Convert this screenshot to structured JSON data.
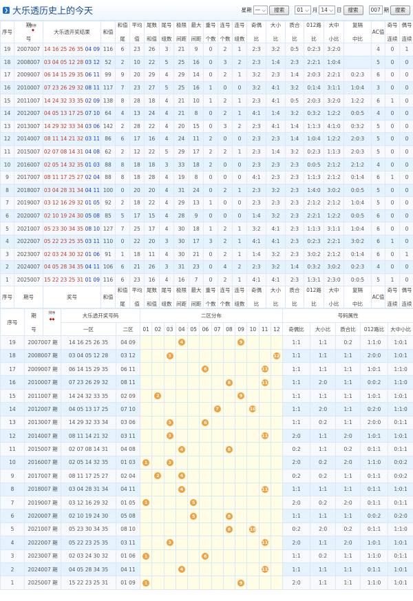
{
  "header": {
    "title": "大乐透历史上的今天",
    "week_label": "星期",
    "week_value": "一",
    "search": "搜索",
    "month_value": "01",
    "month_label": "月",
    "day_value": "14",
    "day_label": "日",
    "issue_value": "007",
    "issue_label": "期"
  },
  "table1": {
    "headers": [
      [
        "序号"
      ],
      [
        "期",
        "号"
      ],
      [
        "大乐透开奖结果"
      ],
      [
        "和值"
      ],
      [
        "和值",
        "尾"
      ],
      [
        "平均",
        "值"
      ],
      [
        "尾数",
        "和值"
      ],
      [
        "尾号",
        "组数"
      ],
      [
        "极限",
        "间距"
      ],
      [
        "最大",
        "间距"
      ],
      [
        "重号",
        "个数"
      ],
      [
        "连号",
        "个数"
      ],
      [
        "连号",
        "组数"
      ],
      [
        "奇偶",
        "比"
      ],
      [
        "大小",
        "比"
      ],
      [
        "质合",
        "比"
      ],
      [
        "012路",
        "比"
      ],
      [
        "大中",
        "小比"
      ],
      [
        "复隔",
        "中比"
      ],
      [
        "AC值"
      ],
      [
        "奇号",
        "连续"
      ],
      [
        "偶号",
        "连续"
      ]
    ],
    "sort_label": "排序",
    "footer_headers": [
      [
        "序号"
      ],
      [
        "期号"
      ],
      [
        "奖号"
      ],
      [
        "和值"
      ],
      [
        "和值",
        "尾"
      ],
      [
        "平均",
        "值"
      ],
      [
        "尾数",
        "和值"
      ],
      [
        "尾号",
        "组数"
      ],
      [
        "极限",
        "间距"
      ],
      [
        "最大",
        "间距"
      ],
      [
        "重号",
        "个数"
      ],
      [
        "连号",
        "个数"
      ],
      [
        "连号",
        "组数"
      ],
      [
        "奇偶",
        "比"
      ],
      [
        "大小",
        "比"
      ],
      [
        "质合",
        "比"
      ],
      [
        "012路",
        "比"
      ],
      [
        "大中",
        "小比"
      ],
      [
        "复隔",
        "中比"
      ],
      [
        "AC值"
      ],
      [
        "奇号",
        "连续"
      ],
      [
        "偶号",
        "连续"
      ]
    ],
    "rows": [
      [
        "19",
        "2007007",
        "14 16 25 26 35",
        "04 09",
        "116",
        "6",
        "23",
        "26",
        "3",
        "21",
        "9",
        "0",
        "2",
        "1",
        "2:3",
        "3:2",
        "0:5",
        "0:2:3",
        "3:2:0",
        "",
        "4",
        "0",
        "1"
      ],
      [
        "18",
        "2008007",
        "03 04 05 12 28",
        "03 12",
        "52",
        "2",
        "10",
        "22",
        "5",
        "25",
        "16",
        "0",
        "3",
        "2",
        "2:3",
        "1:4",
        "2:3",
        "2:2:1",
        "1:0:4",
        "",
        "5",
        "0",
        "0"
      ],
      [
        "17",
        "2009007",
        "06 14 15 29 35",
        "06 11",
        "99",
        "9",
        "20",
        "29",
        "4",
        "29",
        "14",
        "0",
        "2",
        "1",
        "3:2",
        "2:3",
        "1:4",
        "2:0:3",
        "2:2:1",
        "0:2:3",
        "6",
        "0",
        "0"
      ],
      [
        "16",
        "2010007",
        "07 23 26 29 32",
        "08 11",
        "117",
        "7",
        "23",
        "27",
        "5",
        "25",
        "16",
        "1",
        "0",
        "0",
        "3:2",
        "4:1",
        "3:2",
        "0:1:4",
        "3:1:1",
        "1:0:4",
        "3",
        "0",
        "0"
      ],
      [
        "15",
        "2011007",
        "14 24 32 33 35",
        "02 09",
        "138",
        "8",
        "28",
        "18",
        "4",
        "21",
        "10",
        "1",
        "2",
        "1",
        "2:3",
        "4:1",
        "0:5",
        "2:0:3",
        "3:2:0",
        "1:2:2",
        "6",
        "1",
        "0"
      ],
      [
        "14",
        "2012007",
        "04 05 13 17 25",
        "07 10",
        "64",
        "4",
        "13",
        "24",
        "4",
        "21",
        "8",
        "0",
        "2",
        "1",
        "4:1",
        "1:4",
        "3:2",
        "0:3:2",
        "1:2:2",
        "0:0:5",
        "4",
        "0",
        "0"
      ],
      [
        "13",
        "2013007",
        "14 29 32 33 34",
        "03 06",
        "142",
        "2",
        "28",
        "22",
        "4",
        "20",
        "15",
        "0",
        "3",
        "2",
        "2:3",
        "4:1",
        "1:4",
        "1:1:3",
        "4:1:0",
        "0:3:2",
        "5",
        "0",
        "0"
      ],
      [
        "12",
        "2014007",
        "08 11 14 21 32",
        "03 11",
        "86",
        "6",
        "17",
        "16",
        "4",
        "24",
        "11",
        "2",
        "0",
        "0",
        "2:3",
        "2:3",
        "1:4",
        "1:0:4",
        "1:2:2",
        "2:0:3",
        "5",
        "0",
        "0"
      ],
      [
        "11",
        "2015007",
        "02 07 08 14 31",
        "04 08",
        "62",
        "2",
        "12",
        "22",
        "5",
        "29",
        "17",
        "2",
        "2",
        "1",
        "2:3",
        "1:4",
        "3:2",
        "0:2:3",
        "1:1:3",
        "2:0:3",
        "5",
        "0",
        "0"
      ],
      [
        "10",
        "2016007",
        "02 05 14 32 35",
        "01 03",
        "88",
        "8",
        "18",
        "18",
        "3",
        "33",
        "18",
        "2",
        "0",
        "0",
        "2:3",
        "2:3",
        "2:3",
        "0:0:5",
        "2:1:2",
        "2:1:2",
        "4",
        "0",
        "0"
      ],
      [
        "9",
        "2017007",
        "08 11 17 25 27",
        "02 04",
        "88",
        "8",
        "18",
        "28",
        "4",
        "19",
        "8",
        "0",
        "0",
        "0",
        "4:1",
        "2:3",
        "2:3",
        "1:1:3",
        "2:1:2",
        "0:1:4",
        "6",
        "1",
        "0"
      ],
      [
        "8",
        "2018007",
        "03 04 28 31 34",
        "04 11",
        "100",
        "0",
        "20",
        "20",
        "4",
        "31",
        "24",
        "0",
        "2",
        "1",
        "2:3",
        "3:2",
        "2:3",
        "1:4:0",
        "3:0:2",
        "0:0:5",
        "5",
        "0",
        "0"
      ],
      [
        "7",
        "2019007",
        "03 12 16 29 32",
        "01 05",
        "92",
        "2",
        "18",
        "22",
        "4",
        "29",
        "13",
        "1",
        "0",
        "0",
        "2:3",
        "2:3",
        "2:3",
        "2:1:2",
        "2:1:2",
        "1:0:4",
        "5",
        "0",
        "0"
      ],
      [
        "6",
        "2020007",
        "02 10 19 24 30",
        "05 08",
        "85",
        "5",
        "17",
        "15",
        "4",
        "28",
        "9",
        "0",
        "0",
        "0",
        "1:4",
        "3:2",
        "2:3",
        "2:2:1",
        "1:2:2",
        "0:0:5",
        "6",
        "0",
        "0"
      ],
      [
        "5",
        "2021007",
        "05 23 30 34 35",
        "08 10",
        "127",
        "7",
        "25",
        "17",
        "4",
        "30",
        "18",
        "1",
        "2",
        "1",
        "3:2",
        "4:1",
        "2:3",
        "1:1:3",
        "3:1:1",
        "1:0:4",
        "6",
        "0",
        "0"
      ],
      [
        "4",
        "2022007",
        "05 22 23 25 35",
        "03 11",
        "110",
        "0",
        "22",
        "20",
        "3",
        "30",
        "17",
        "3",
        "2",
        "1",
        "4:1",
        "4:1",
        "2:3",
        "0:2:3",
        "2:2:1",
        "3:0:2",
        "6",
        "1",
        "0"
      ],
      [
        "3",
        "2023007",
        "02 03 24 30 32",
        "01 06",
        "91",
        "1",
        "18",
        "11",
        "4",
        "30",
        "21",
        "0",
        "2",
        "1",
        "1:4",
        "3:2",
        "2:3",
        "3:0:2",
        "2:1:2",
        "0:1:4",
        "6",
        "0",
        "1"
      ],
      [
        "2",
        "2024007",
        "04 05 28 34 35",
        "04 11",
        "106",
        "6",
        "21",
        "26",
        "3",
        "31",
        "23",
        "0",
        "4",
        "2",
        "2:3",
        "3:2",
        "1:4",
        "0:3:2",
        "3:0:2",
        "0:2:3",
        "4",
        "0",
        "0"
      ],
      [
        "1",
        "2025007",
        "15 22 23 25 31",
        "01 09",
        "116",
        "6",
        "23",
        "16",
        "4",
        "16",
        "7",
        "0",
        "2",
        "1",
        "4:1",
        "4:1",
        "2:3",
        "1:3:1",
        "2:3:0",
        "0:0:5",
        "5",
        "1",
        "0"
      ]
    ]
  },
  "table2": {
    "h_seq": "序号",
    "h_issue": [
      "期",
      "号"
    ],
    "h_sort": "排序",
    "h_code": "大乐透开奖号码",
    "h_dist": "二区分布",
    "h_attr": "号码属性",
    "h_zone1": "一区",
    "h_zone2": "二区",
    "dist_cols": [
      "01",
      "02",
      "03",
      "04",
      "05",
      "06",
      "07",
      "08",
      "09",
      "10",
      "11",
      "12"
    ],
    "attr_cols": [
      "奇偶比",
      "大小比",
      "质合比",
      "012路比",
      "大中小比"
    ],
    "issue_suffix": "期",
    "attrs": [
      [
        "1:1",
        "1:1",
        "0:2",
        "1:1:0",
        "1:0:1"
      ],
      [
        "1:1",
        "1:1",
        "1:1",
        "2:0:0",
        "1:0:1"
      ],
      [
        "1:1",
        "1:1",
        "1:1",
        "1:0:1",
        "1:1:0"
      ],
      [
        "1:1",
        "2:0",
        "1:1",
        "0:0:2",
        "1:1:0"
      ],
      [
        "1:1",
        "1:1",
        "1:1",
        "1:0:1",
        "1:0:1"
      ],
      [
        "1:1",
        "2:0",
        "1:1",
        "0:2:0",
        "1:1:0"
      ],
      [
        "1:1",
        "0:2",
        "1:1",
        "2:0:0",
        "0:1:1"
      ],
      [
        "2:0",
        "1:1",
        "2:0",
        "1:0:1",
        "1:0:1"
      ],
      [
        "0:2",
        "1:1",
        "0:2",
        "0:1:1",
        "0:1:1"
      ],
      [
        "2:0",
        "0:2",
        "2:0",
        "1:1:0",
        "0:0:2"
      ],
      [
        "0:2",
        "0:2",
        "1:1",
        "0:1:1",
        "0:0:2"
      ],
      [
        "1:1",
        "1:1",
        "1:1",
        "0:1:1",
        "1:0:1"
      ],
      [
        "2:0",
        "0:2",
        "2:0",
        "0:1:1",
        "0:1:1"
      ],
      [
        "1:1",
        "1:1",
        "1:1",
        "0:0:2",
        "0:2:0"
      ],
      [
        "0:2",
        "2:0",
        "0:2",
        "0:1:1",
        "1:1:0"
      ],
      [
        "2:0",
        "1:1",
        "2:0",
        "1:0:1",
        "1:0:1"
      ],
      [
        "1:1",
        "0:2",
        "1:1",
        "1:1:0",
        "0:1:1"
      ],
      [
        "1:1",
        "1:1",
        "1:1",
        "0:1:1",
        "1:0:1"
      ],
      [
        "2:0",
        "1:1",
        "1:1",
        "1:1:0",
        "1:0:1"
      ]
    ]
  },
  "colors": {
    "front": "#c0392b",
    "back": "#1a3ccc",
    "ball": "#f0a040",
    "row_alt": "#e4f3fd",
    "dist_bg": "#fffde6"
  }
}
